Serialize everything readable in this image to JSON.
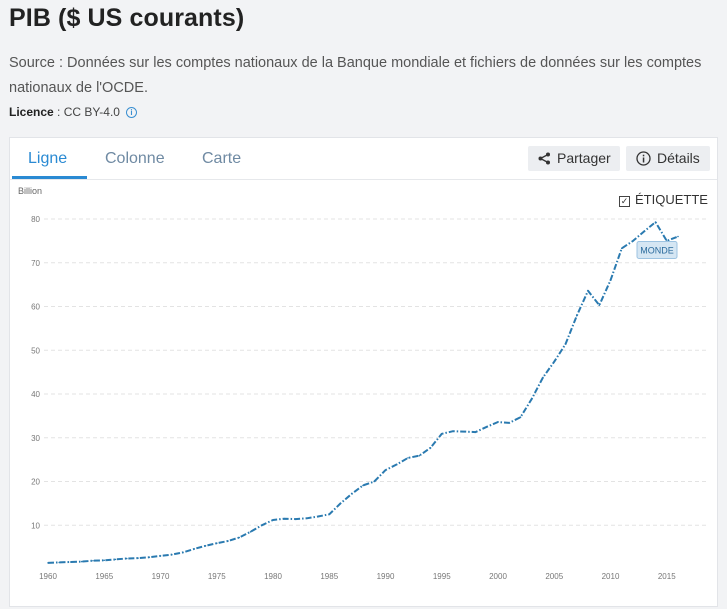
{
  "header": {
    "title": "PIB ($ US courants)",
    "source": "Source : Données sur les comptes nationaux de la Banque mondiale et fichiers de données sur les comptes nationaux de l'OCDE.",
    "licence_label": "Licence",
    "licence_value": " : CC BY-4.0"
  },
  "tabs": [
    {
      "label": "Ligne",
      "active": true
    },
    {
      "label": "Colonne",
      "active": false
    },
    {
      "label": "Carte",
      "active": false
    }
  ],
  "actions": {
    "share_label": "Partager",
    "details_label": "Détails"
  },
  "etiquette_label": "ÉTIQUETTE",
  "colors": {
    "accent": "#2a8ad3",
    "series": "#2a7ab0"
  },
  "chart_data": {
    "type": "line",
    "ylabel": "Billion",
    "ylim": [
      0,
      80
    ],
    "yticks": [
      10,
      20,
      30,
      40,
      50,
      60,
      70,
      80
    ],
    "xlim": [
      1960,
      2016
    ],
    "xticks": [
      1960,
      1965,
      1970,
      1975,
      1980,
      1985,
      1990,
      1995,
      2000,
      2005,
      2010,
      2015
    ],
    "grid": true,
    "series": [
      {
        "name": "MONDE",
        "x": [
          1960,
          1961,
          1962,
          1963,
          1964,
          1965,
          1966,
          1967,
          1968,
          1969,
          1970,
          1971,
          1972,
          1973,
          1974,
          1975,
          1976,
          1977,
          1978,
          1979,
          1980,
          1981,
          1982,
          1983,
          1984,
          1985,
          1986,
          1987,
          1988,
          1989,
          1990,
          1991,
          1992,
          1993,
          1994,
          1995,
          1996,
          1997,
          1998,
          1999,
          2000,
          2001,
          2002,
          2003,
          2004,
          2005,
          2006,
          2007,
          2008,
          2009,
          2010,
          2011,
          2012,
          2013,
          2014,
          2015,
          2016
        ],
        "values": [
          1.4,
          1.5,
          1.6,
          1.7,
          1.9,
          2.0,
          2.2,
          2.4,
          2.5,
          2.7,
          3.0,
          3.3,
          3.8,
          4.6,
          5.3,
          5.9,
          6.4,
          7.2,
          8.5,
          10.0,
          11.2,
          11.5,
          11.4,
          11.6,
          12.0,
          12.5,
          15.0,
          17.2,
          19.1,
          20.0,
          22.6,
          23.9,
          25.4,
          25.9,
          27.7,
          30.9,
          31.5,
          31.4,
          31.3,
          32.5,
          33.6,
          33.4,
          34.7,
          38.9,
          43.8,
          47.4,
          51.4,
          57.9,
          63.6,
          60.3,
          66.0,
          73.3,
          75.0,
          77.2,
          79.3,
          75.0,
          76.0
        ]
      }
    ]
  }
}
